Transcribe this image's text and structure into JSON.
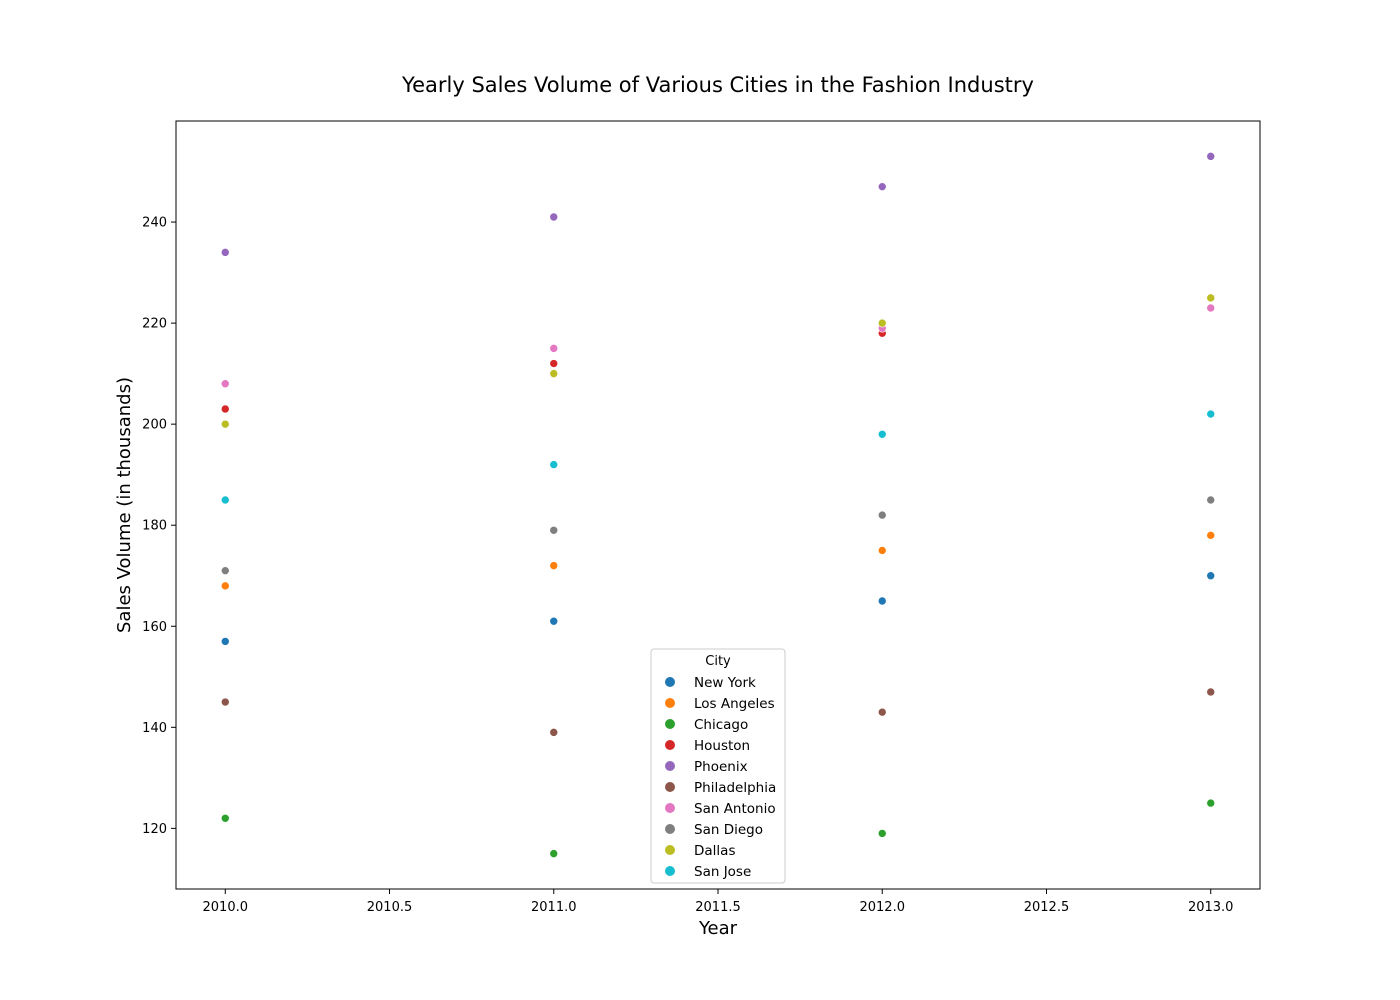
{
  "chart_data": {
    "type": "scatter",
    "title": "Yearly Sales Volume of Various Cities in the Fashion Industry",
    "xlabel": "Year",
    "ylabel": "Sales Volume (in thousands)",
    "xlim": [
      2009.85,
      2013.15
    ],
    "ylim": [
      108,
      260
    ],
    "xticks": [
      2010.0,
      2010.5,
      2011.0,
      2011.5,
      2012.0,
      2012.5,
      2013.0
    ],
    "xtick_labels": [
      "2010.0",
      "2010.5",
      "2011.0",
      "2011.5",
      "2012.0",
      "2012.5",
      "2013.0"
    ],
    "yticks": [
      120,
      140,
      160,
      180,
      200,
      220,
      240
    ],
    "ytick_labels": [
      "120",
      "140",
      "160",
      "180",
      "200",
      "220",
      "240"
    ],
    "grid": false,
    "x": [
      2010,
      2011,
      2012,
      2013
    ],
    "legend": {
      "title": "City",
      "position": "bottom-center"
    },
    "series": [
      {
        "name": "New York",
        "color": "#1f77b4",
        "values": [
          157,
          161,
          165,
          170
        ]
      },
      {
        "name": "Los Angeles",
        "color": "#ff7f0e",
        "values": [
          168,
          172,
          175,
          178
        ]
      },
      {
        "name": "Chicago",
        "color": "#2ca02c",
        "values": [
          122,
          115,
          119,
          125
        ]
      },
      {
        "name": "Houston",
        "color": "#d62728",
        "values": [
          203,
          212,
          218,
          225
        ]
      },
      {
        "name": "Phoenix",
        "color": "#9467bd",
        "values": [
          234,
          241,
          247,
          253
        ]
      },
      {
        "name": "Philadelphia",
        "color": "#8c564b",
        "values": [
          145,
          139,
          143,
          147
        ]
      },
      {
        "name": "San Antonio",
        "color": "#e377c2",
        "values": [
          208,
          215,
          219,
          223
        ]
      },
      {
        "name": "San Diego",
        "color": "#7f7f7f",
        "values": [
          171,
          179,
          182,
          185
        ]
      },
      {
        "name": "Dallas",
        "color": "#bcbd22",
        "values": [
          200,
          210,
          220,
          225
        ]
      },
      {
        "name": "San Jose",
        "color": "#17becf",
        "values": [
          185,
          192,
          198,
          202
        ]
      }
    ]
  }
}
